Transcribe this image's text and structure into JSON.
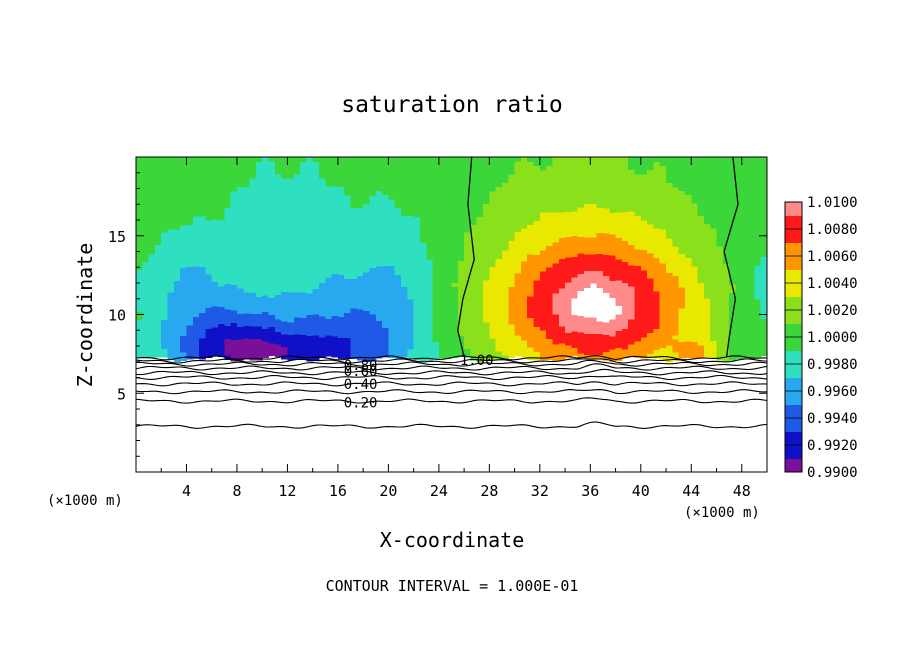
{
  "chart_data": {
    "type": "heatmap",
    "title": "saturation ratio",
    "xlabel": "X-coordinate",
    "ylabel": "Z-coordinate",
    "x_unit_left": "(×1000 m)",
    "x_unit_right": "(×1000 m)",
    "footer": "CONTOUR INTERVAL = 1.000E-01",
    "xlim": [
      0,
      50
    ],
    "ylim": [
      0,
      20
    ],
    "x_ticks": [
      "4",
      "8",
      "12",
      "16",
      "20",
      "24",
      "28",
      "32",
      "36",
      "40",
      "44",
      "48"
    ],
    "x_tick_values": [
      4,
      8,
      12,
      16,
      20,
      24,
      28,
      32,
      36,
      40,
      44,
      48
    ],
    "y_ticks": [
      "5",
      "10",
      "15"
    ],
    "y_tick_values": [
      5,
      10,
      15
    ],
    "colorbar": {
      "labels": [
        "1.0100",
        "1.0080",
        "1.0060",
        "1.0040",
        "1.0020",
        "1.0000",
        "0.9980",
        "0.9960",
        "0.9940",
        "0.9920",
        "0.9900"
      ],
      "min": 0.99,
      "max": 1.01,
      "colors": [
        "#7a0f9a",
        "#1010c8",
        "#1e5ae6",
        "#28a8ee",
        "#2fe0c0",
        "#3ad63a",
        "#8ae01a",
        "#e8e800",
        "#ff9600",
        "#ff1a1a",
        "#ff8a8a"
      ]
    },
    "contour_labels": [
      {
        "text": "1.00",
        "x": 27,
        "y": 7.1
      },
      {
        "text": "0.80",
        "x": 17.8,
        "y": 6.8
      },
      {
        "text": "0.60",
        "x": 17.8,
        "y": 6.4
      },
      {
        "text": "0.40",
        "x": 17.8,
        "y": 5.6
      },
      {
        "text": "0.20",
        "x": 17.8,
        "y": 4.4
      }
    ],
    "contour_levels": [
      {
        "level": 0.1,
        "z": 2.9
      },
      {
        "level": 0.2,
        "z": 4.5
      },
      {
        "level": 0.3,
        "z": 5.1
      },
      {
        "level": 0.4,
        "z": 5.6
      },
      {
        "level": 0.5,
        "z": 6.0
      },
      {
        "level": 0.6,
        "z": 6.3
      },
      {
        "level": 0.7,
        "z": 6.6
      },
      {
        "level": 0.8,
        "z": 6.85
      },
      {
        "level": 0.9,
        "z": 7.05
      },
      {
        "level": 1.0,
        "z": 7.25
      }
    ],
    "base_z": 7.2,
    "saturation_contours": [
      {
        "level": 1.0,
        "points": [
          [
            26.6,
            20
          ],
          [
            26.3,
            17
          ],
          [
            26.8,
            13.5
          ],
          [
            25.9,
            11
          ],
          [
            25.5,
            9
          ],
          [
            26,
            7.3
          ]
        ]
      },
      {
        "level": 1.0,
        "points": [
          [
            47.3,
            20
          ],
          [
            47.7,
            17
          ],
          [
            46.6,
            14
          ],
          [
            47.5,
            11
          ],
          [
            47,
            8.5
          ],
          [
            46.8,
            7.3
          ]
        ]
      }
    ],
    "features": [
      {
        "kind": "dry",
        "cx": 10.5,
        "cz": 7.4,
        "sx": 7.5,
        "sz": 2.0,
        "amp": -0.0055
      },
      {
        "kind": "dry",
        "cx": 7.5,
        "cz": 8.4,
        "sx": 4.5,
        "sz": 2.6,
        "amp": -0.0045
      },
      {
        "kind": "dry",
        "cx": 17.2,
        "cz": 8.4,
        "sx": 5.0,
        "sz": 4.0,
        "amp": -0.004
      },
      {
        "kind": "dry",
        "cx": 4.0,
        "cz": 11.8,
        "sx": 3.5,
        "sz": 3.0,
        "amp": -0.0028
      },
      {
        "kind": "dry",
        "cx": 21.0,
        "cz": 12.0,
        "sx": 3.5,
        "sz": 5.0,
        "amp": -0.0022
      },
      {
        "kind": "dry",
        "cx": 12.0,
        "cz": 14.0,
        "sx": 7.0,
        "sz": 7.0,
        "amp": -0.0018
      },
      {
        "kind": "dry",
        "cx": 49.5,
        "cz": 11.0,
        "sx": 2.5,
        "sz": 6.0,
        "amp": -0.0018
      },
      {
        "kind": "moist",
        "cx": 36.5,
        "cz": 10.3,
        "sx": 8.0,
        "sz": 4.4,
        "amp": 0.0095
      },
      {
        "kind": "moist",
        "cx": 35.5,
        "cz": 15.0,
        "sx": 8.0,
        "sz": 6.0,
        "amp": 0.0022
      },
      {
        "kind": "moist",
        "cx": 44.5,
        "cz": 7.6,
        "sx": 1.6,
        "sz": 0.8,
        "amp": 0.004
      }
    ]
  }
}
